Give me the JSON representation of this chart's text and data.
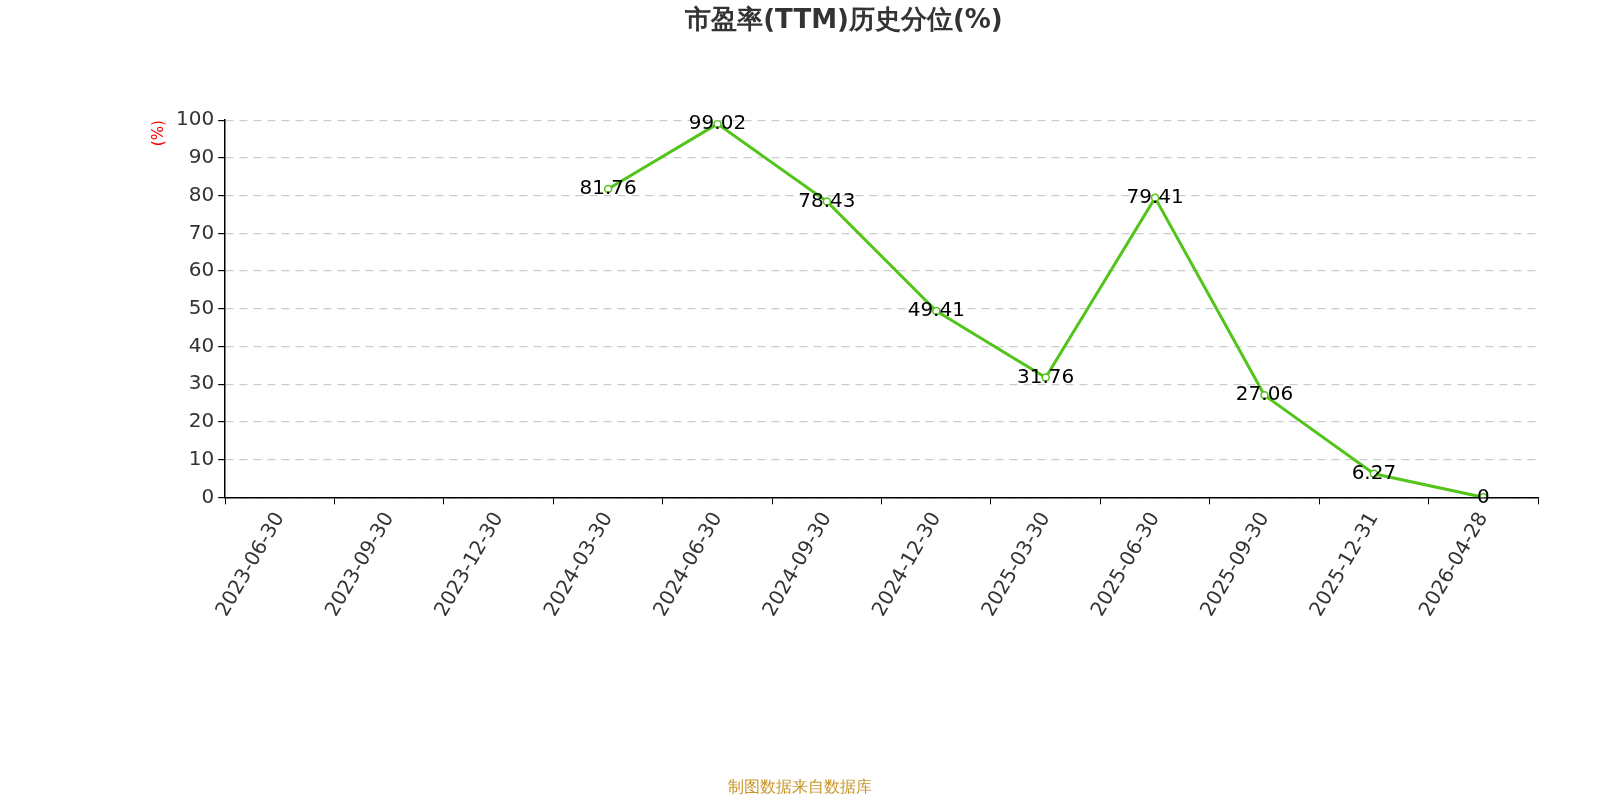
{
  "chart_data": {
    "type": "line",
    "title": "市盈率(TTM)历史分位(%)",
    "ylabel": "(%)",
    "categories": [
      "2023-06-30",
      "2023-09-30",
      "2023-12-30",
      "2024-03-30",
      "2024-06-30",
      "2024-09-30",
      "2024-12-30",
      "2025-03-30",
      "2025-06-30",
      "2025-09-30",
      "2025-12-31",
      "2026-04-28"
    ],
    "series": [
      {
        "color": "#52c41a",
        "values": [
          null,
          null,
          null,
          81.76,
          99.02,
          78.43,
          49.41,
          31.76,
          79.41,
          27.06,
          6.27,
          0
        ]
      }
    ],
    "ylim": [
      0,
      100
    ],
    "yticks": [
      0,
      10,
      20,
      30,
      40,
      50,
      60,
      70,
      80,
      90,
      100
    ],
    "grid": "y",
    "legend": false,
    "marker": "circle",
    "line_style": "solid",
    "data_labels": true,
    "annotations": [
      "制图数据来自数据库"
    ]
  }
}
